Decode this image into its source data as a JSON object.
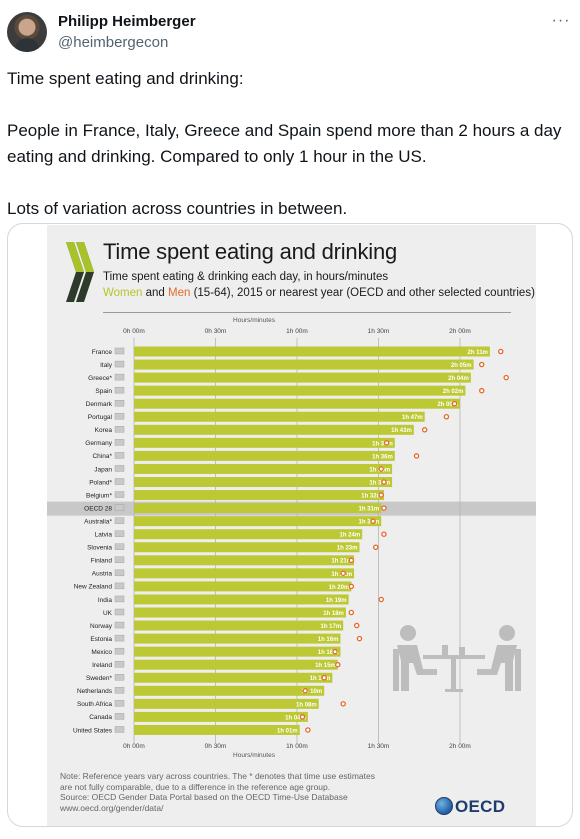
{
  "tweet": {
    "author_name": "Philipp Heimberger",
    "author_handle": "@heimbergecon",
    "text_paragraphs": [
      "Time spent eating and drinking:",
      "People in France, Italy, Greece and Spain spend more than 2 hours a day eating and drinking. Compared to only 1 hour in the US.",
      "Lots of variation across countries in between."
    ]
  },
  "infographic": {
    "title": "Time spent eating and drinking",
    "subtitle": "Time spent eating & drinking each day, in hours/minutes",
    "subtitle2_women": "Women",
    "subtitle2_and": " and ",
    "subtitle2_men": "Men",
    "subtitle2_rest": " (15-64), 2015 or nearest year (OECD and other selected countries)",
    "note_lines": [
      "Note: Reference years vary across countries. The * denotes that time use estimates",
      "are not fully comparable, due to a difference in the reference age group.",
      "Source: OECD Gender Data Portal based on the OECD Time-Use Database",
      "www.oecd.org/gender/data/"
    ],
    "logo_text": "OECD"
  },
  "colors": {
    "women_bar": "#bcc934",
    "men_dot": "#e46a2a",
    "highlight_row": "#c8c8c8",
    "background": "#eeeeee"
  },
  "chart_data": {
    "type": "bar",
    "orientation": "horizontal",
    "axis_title": "Hours/minutes",
    "x_ticks": [
      "0h 00m",
      "0h 30m",
      "1h 00m",
      "1h 30m",
      "2h 00m"
    ],
    "xlim": [
      0,
      140
    ],
    "x_unit": "minutes",
    "highlight": "OECD 28",
    "series": [
      {
        "name": "Women",
        "type": "bar"
      },
      {
        "name": "Men",
        "type": "dot"
      }
    ],
    "rows": [
      {
        "country": "France",
        "label": "2h 11m",
        "women": 131,
        "men": 135
      },
      {
        "country": "Italy",
        "label": "2h 05m",
        "women": 125,
        "men": 128
      },
      {
        "country": "Greece*",
        "label": "2h 04m",
        "women": 124,
        "men": 137
      },
      {
        "country": "Spain",
        "label": "2h 02m",
        "women": 122,
        "men": 128
      },
      {
        "country": "Denmark",
        "label": "2h 00m",
        "women": 120,
        "men": 118
      },
      {
        "country": "Portugal",
        "label": "1h 47m",
        "women": 107,
        "men": 115
      },
      {
        "country": "Korea",
        "label": "1h 43m",
        "women": 103,
        "men": 107
      },
      {
        "country": "Germany",
        "label": "1h 36m",
        "women": 96,
        "men": 93
      },
      {
        "country": "China*",
        "label": "1h 36m",
        "women": 96,
        "men": 104
      },
      {
        "country": "Japan",
        "label": "1h 35m",
        "women": 95,
        "men": 91
      },
      {
        "country": "Poland*",
        "label": "1h 35m",
        "women": 95,
        "men": 92
      },
      {
        "country": "Belgium*",
        "label": "1h 32m",
        "women": 92,
        "men": 91
      },
      {
        "country": "OECD 28",
        "label": "1h 31m",
        "women": 91,
        "men": 92
      },
      {
        "country": "Australia*",
        "label": "1h 31m",
        "women": 91,
        "men": 88
      },
      {
        "country": "Latvia",
        "label": "1h 24m",
        "women": 84,
        "men": 92
      },
      {
        "country": "Slovenia",
        "label": "1h 23m",
        "women": 83,
        "men": 89
      },
      {
        "country": "Finland",
        "label": "1h 21m",
        "women": 81,
        "men": 80
      },
      {
        "country": "Austria",
        "label": "1h 21m",
        "women": 81,
        "men": 77
      },
      {
        "country": "New Zealand",
        "label": "1h 20m",
        "women": 80,
        "men": 80
      },
      {
        "country": "India",
        "label": "1h 19m",
        "women": 79,
        "men": 91
      },
      {
        "country": "UK",
        "label": "1h 18m",
        "women": 78,
        "men": 80
      },
      {
        "country": "Norway",
        "label": "1h 17m",
        "women": 77,
        "men": 82
      },
      {
        "country": "Estonia",
        "label": "1h 16m",
        "women": 76,
        "men": 83
      },
      {
        "country": "Mexico",
        "label": "1h 16m",
        "women": 76,
        "men": 74
      },
      {
        "country": "Ireland",
        "label": "1h 15m",
        "women": 75,
        "men": 75
      },
      {
        "country": "Sweden*",
        "label": "1h 13m",
        "women": 73,
        "men": 70
      },
      {
        "country": "Netherlands",
        "label": "1h 10m",
        "women": 70,
        "men": 63
      },
      {
        "country": "South Africa",
        "label": "1h 08m",
        "women": 68,
        "men": 77
      },
      {
        "country": "Canada",
        "label": "1h 04m",
        "women": 64,
        "men": 62
      },
      {
        "country": "United States",
        "label": "1h 01m",
        "women": 61,
        "men": 64
      }
    ]
  }
}
